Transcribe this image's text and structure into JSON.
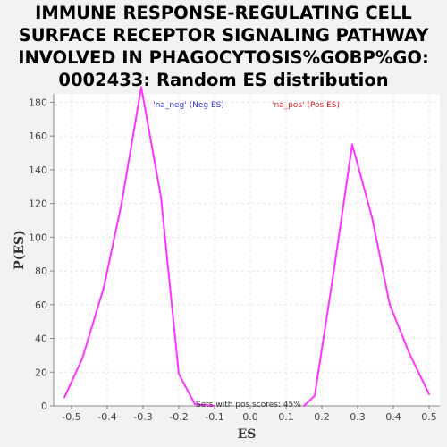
{
  "chart_data": {
    "type": "line",
    "title": "IMMUNE RESPONSE-REGULATING CELL SURFACE RECEPTOR SIGNALING PATHWAY INVOLVED IN PHAGOCYTOSIS%GOBP%GO:0002433: Random ES distribution",
    "title_lines": [
      "IMMUNE RESPONSE-REGULATING CELL",
      "SURFACE RECEPTOR SIGNALING PATHWAY",
      "INVOLVED IN PHAGOCYTOSIS%GOBP%GO:",
      "0002433: Random ES distribution"
    ],
    "xlabel": "ES",
    "ylabel": "P(ES)",
    "xlim": [
      -0.55,
      0.53
    ],
    "ylim": [
      0,
      185
    ],
    "xticks": [
      -0.5,
      -0.4,
      -0.3,
      -0.2,
      -0.1,
      0.0,
      0.1,
      0.2,
      0.3,
      0.4,
      0.5
    ],
    "xtick_labels": [
      "-0.5",
      "-0.4",
      "-0.3",
      "-0.2",
      "-0.1",
      "0.0",
      "0.1",
      "0.2",
      "0.3",
      "0.4",
      "0.5"
    ],
    "yticks": [
      0,
      20,
      40,
      60,
      80,
      100,
      120,
      140,
      160,
      180
    ],
    "grid": true,
    "legend_position": "top",
    "series": [
      {
        "name": "'na_neg' (Neg ES)",
        "color": "#3333cc",
        "x": [
          -0.52,
          -0.47,
          -0.41,
          -0.36,
          -0.305,
          -0.25,
          -0.2,
          -0.155,
          -0.1
        ],
        "y": [
          5,
          28,
          70,
          120,
          189,
          124,
          19,
          1,
          0
        ]
      },
      {
        "name": "'na_pos' (Pos ES)",
        "color": "#dd2222",
        "x": [
          0.15,
          0.18,
          0.23,
          0.285,
          0.34,
          0.39,
          0.445,
          0.5
        ],
        "y": [
          0,
          6,
          75,
          155,
          112,
          60,
          31,
          7
        ]
      }
    ],
    "plot_color": "#ff33ff",
    "annotation": "Sets with pos scores: 45%"
  }
}
